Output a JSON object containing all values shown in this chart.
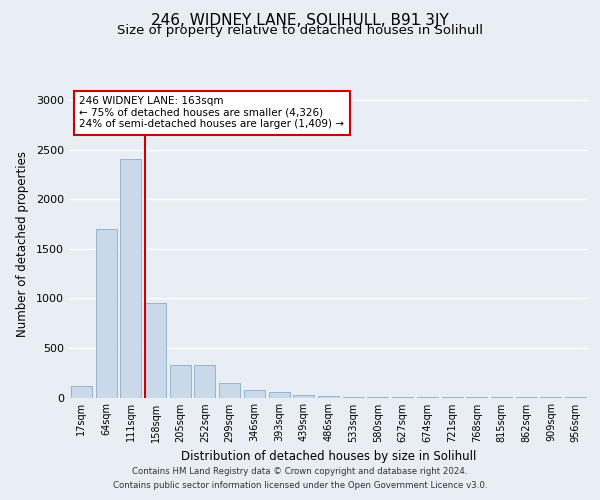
{
  "title": "246, WIDNEY LANE, SOLIHULL, B91 3JY",
  "subtitle": "Size of property relative to detached houses in Solihull",
  "xlabel": "Distribution of detached houses by size in Solihull",
  "ylabel": "Number of detached properties",
  "footer_line1": "Contains HM Land Registry data © Crown copyright and database right 2024.",
  "footer_line2": "Contains public sector information licensed under the Open Government Licence v3.0.",
  "bar_labels": [
    "17sqm",
    "64sqm",
    "111sqm",
    "158sqm",
    "205sqm",
    "252sqm",
    "299sqm",
    "346sqm",
    "393sqm",
    "439sqm",
    "486sqm",
    "533sqm",
    "580sqm",
    "627sqm",
    "674sqm",
    "721sqm",
    "768sqm",
    "815sqm",
    "862sqm",
    "909sqm",
    "956sqm"
  ],
  "bar_values": [
    120,
    1700,
    2400,
    950,
    330,
    330,
    150,
    80,
    55,
    30,
    15,
    10,
    8,
    5,
    3,
    2,
    1,
    1,
    1,
    1,
    1
  ],
  "bar_color": "#c9d9ea",
  "bar_edge_color": "#8aaec8",
  "property_line_index": 3,
  "property_line_color": "#cc0000",
  "annotation_text": "246 WIDNEY LANE: 163sqm\n← 75% of detached houses are smaller (4,326)\n24% of semi-detached houses are larger (1,409) →",
  "annotation_box_facecolor": "#ffffff",
  "annotation_box_edgecolor": "#cc0000",
  "ylim": [
    0,
    3100
  ],
  "yticks": [
    0,
    500,
    1000,
    1500,
    2000,
    2500,
    3000
  ],
  "background_color": "#e8eef4",
  "axes_facecolor": "#e8eef4",
  "grid_color": "#ffffff",
  "title_fontsize": 11,
  "subtitle_fontsize": 9.5,
  "tick_fontsize": 7,
  "ylabel_fontsize": 8.5,
  "xlabel_fontsize": 8.5,
  "footer_fontsize": 6.2
}
